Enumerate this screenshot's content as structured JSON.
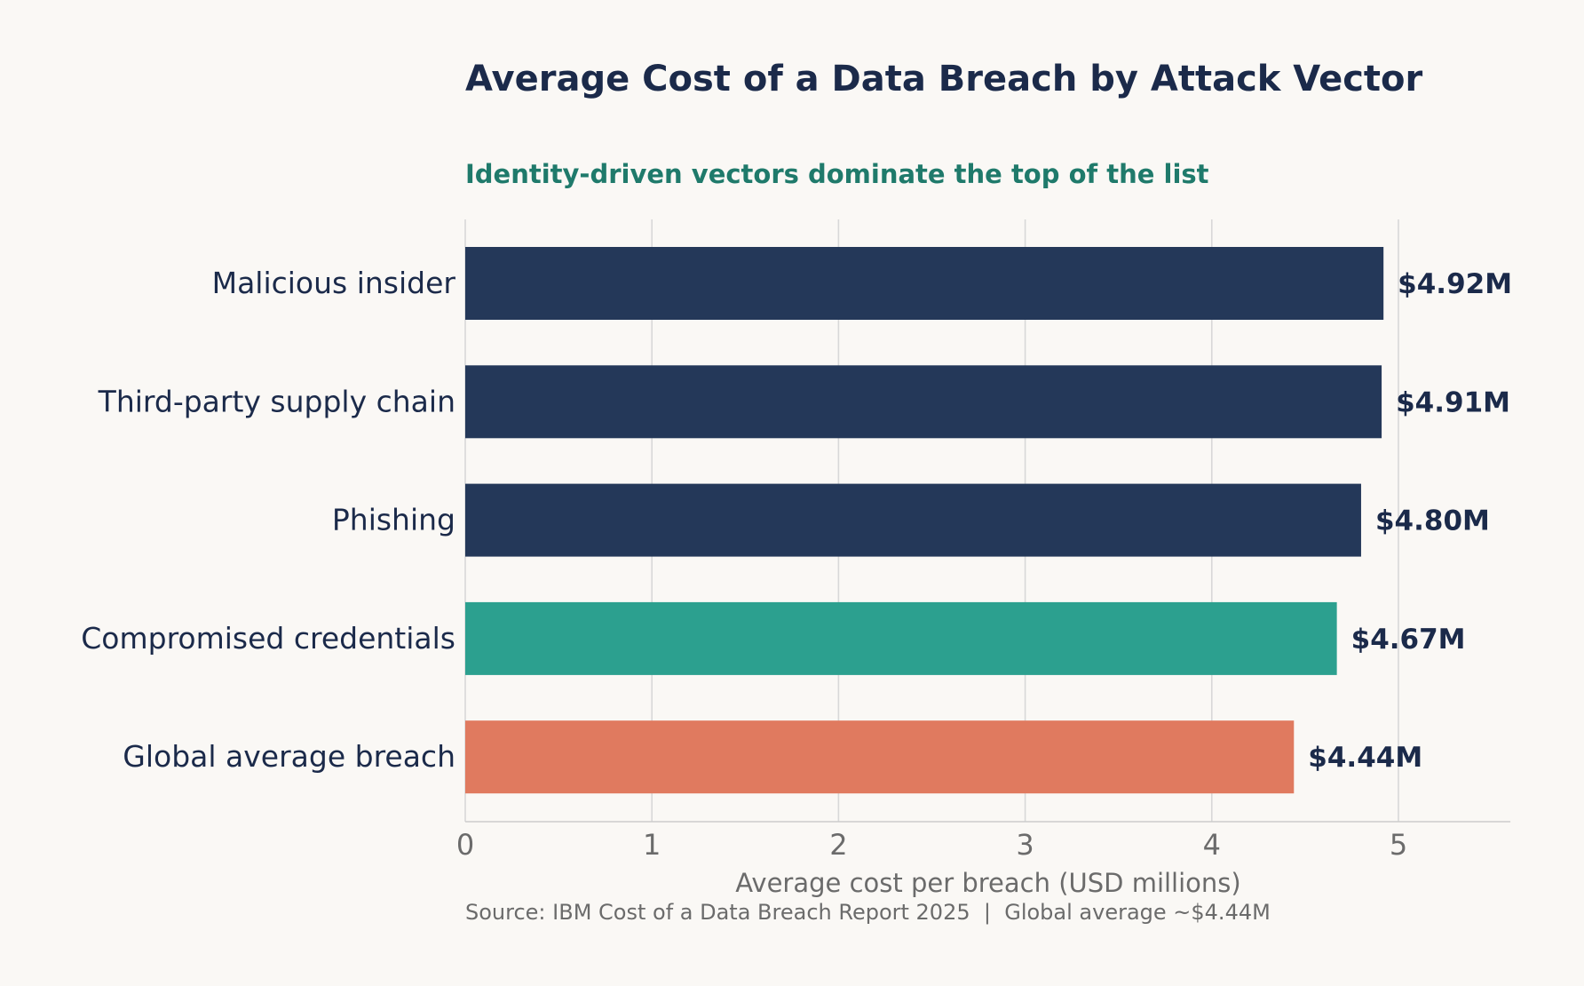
{
  "chart_data": {
    "type": "bar",
    "orientation": "horizontal",
    "title": "Average Cost of a Data Breach by Attack Vector",
    "subtitle": "Identity-driven vectors dominate the top of the list",
    "xlabel": "Average cost per breach (USD millions)",
    "ylabel": "",
    "xlim": [
      0,
      5.6
    ],
    "xticks": [
      0,
      1,
      2,
      3,
      4,
      5
    ],
    "grid": "vertical",
    "legend": "none",
    "categories": [
      "Malicious insider",
      "Third-party supply chain",
      "Phishing",
      "Compromised credentials",
      "Global average breach"
    ],
    "values": [
      4.92,
      4.91,
      4.8,
      4.67,
      4.44
    ],
    "value_labels": [
      "$4.92M",
      "$4.91M",
      "$4.80M",
      "$4.67M",
      "$4.44M"
    ],
    "bar_colors": [
      "#243859",
      "#243859",
      "#243859",
      "#2ca08f",
      "#e07a5f"
    ],
    "source": "Source: IBM Cost of a Data Breach Report 2025  |  Global average ~$4.44M"
  },
  "colors": {
    "background": "#faf8f5",
    "title": "#1b2a4a",
    "subtitle": "#1f7a6b",
    "grid": "#d8d8d8",
    "axis_text": "#6b6b6b",
    "category_text": "#1b2a4a"
  }
}
